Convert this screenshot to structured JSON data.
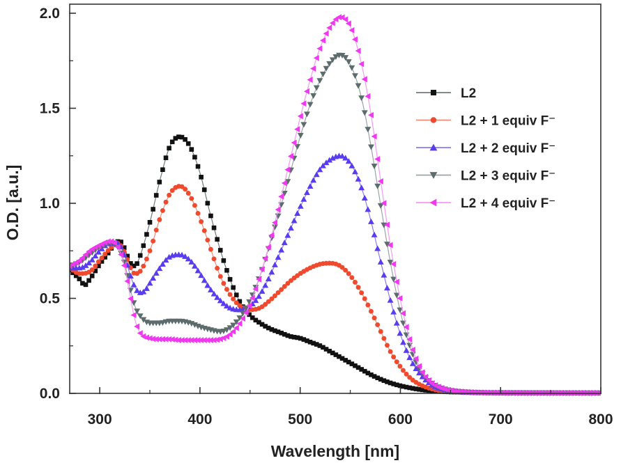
{
  "chart_data": {
    "type": "scatter",
    "title": "",
    "xlabel": "Wavelength [nm]",
    "ylabel": "O.D. [a.u.]",
    "xlim": [
      270,
      800
    ],
    "ylim": [
      0,
      2.0
    ],
    "x_ticks": [
      "300",
      "400",
      "500",
      "600",
      "700",
      "800"
    ],
    "y_ticks": [
      "0.0",
      "0.5",
      "1.0",
      "1.5",
      "2.0"
    ],
    "grid": false,
    "legend_position": "right",
    "series": [
      {
        "name": "L2",
        "marker": "square",
        "color": "#111111",
        "line_color": "#6d7b7c",
        "points": [
          [
            270,
            0.65
          ],
          [
            280,
            0.6
          ],
          [
            285,
            0.57
          ],
          [
            290,
            0.6
          ],
          [
            300,
            0.68
          ],
          [
            310,
            0.75
          ],
          [
            315,
            0.79
          ],
          [
            320,
            0.8
          ],
          [
            325,
            0.76
          ],
          [
            330,
            0.69
          ],
          [
            335,
            0.67
          ],
          [
            340,
            0.72
          ],
          [
            350,
            0.9
          ],
          [
            360,
            1.12
          ],
          [
            370,
            1.3
          ],
          [
            380,
            1.35
          ],
          [
            390,
            1.3
          ],
          [
            400,
            1.16
          ],
          [
            410,
            0.95
          ],
          [
            420,
            0.76
          ],
          [
            430,
            0.6
          ],
          [
            440,
            0.48
          ],
          [
            450,
            0.41
          ],
          [
            460,
            0.37
          ],
          [
            470,
            0.34
          ],
          [
            480,
            0.32
          ],
          [
            490,
            0.3
          ],
          [
            500,
            0.29
          ],
          [
            510,
            0.27
          ],
          [
            520,
            0.25
          ],
          [
            530,
            0.22
          ],
          [
            540,
            0.19
          ],
          [
            550,
            0.16
          ],
          [
            560,
            0.13
          ],
          [
            570,
            0.1
          ],
          [
            580,
            0.075
          ],
          [
            590,
            0.055
          ],
          [
            600,
            0.04
          ],
          [
            620,
            0.02
          ],
          [
            640,
            0.01
          ],
          [
            660,
            0.006
          ],
          [
            700,
            0.004
          ],
          [
            750,
            0.003
          ],
          [
            800,
            0.002
          ]
        ]
      },
      {
        "name": "L2 + 1 equiv F⁻",
        "marker": "circle",
        "color": "#f04a2e",
        "line_color": "#f08b7a",
        "points": [
          [
            270,
            0.66
          ],
          [
            280,
            0.63
          ],
          [
            290,
            0.64
          ],
          [
            300,
            0.7
          ],
          [
            310,
            0.76
          ],
          [
            318,
            0.79
          ],
          [
            325,
            0.74
          ],
          [
            330,
            0.67
          ],
          [
            335,
            0.63
          ],
          [
            340,
            0.64
          ],
          [
            350,
            0.75
          ],
          [
            360,
            0.92
          ],
          [
            370,
            1.05
          ],
          [
            380,
            1.09
          ],
          [
            390,
            1.04
          ],
          [
            400,
            0.92
          ],
          [
            410,
            0.77
          ],
          [
            420,
            0.62
          ],
          [
            430,
            0.52
          ],
          [
            440,
            0.46
          ],
          [
            450,
            0.44
          ],
          [
            460,
            0.45
          ],
          [
            470,
            0.49
          ],
          [
            480,
            0.54
          ],
          [
            490,
            0.59
          ],
          [
            500,
            0.63
          ],
          [
            510,
            0.66
          ],
          [
            520,
            0.68
          ],
          [
            530,
            0.685
          ],
          [
            540,
            0.67
          ],
          [
            550,
            0.62
          ],
          [
            560,
            0.54
          ],
          [
            570,
            0.44
          ],
          [
            580,
            0.33
          ],
          [
            590,
            0.22
          ],
          [
            600,
            0.14
          ],
          [
            610,
            0.08
          ],
          [
            620,
            0.045
          ],
          [
            630,
            0.025
          ],
          [
            640,
            0.014
          ],
          [
            660,
            0.006
          ],
          [
            700,
            0.003
          ],
          [
            750,
            0.002
          ],
          [
            800,
            0.002
          ]
        ]
      },
      {
        "name": "L2 + 2 equiv F⁻",
        "marker": "triangle-up",
        "color": "#5a3cf0",
        "line_color": "#8a7cf0",
        "points": [
          [
            270,
            0.66
          ],
          [
            280,
            0.66
          ],
          [
            290,
            0.69
          ],
          [
            300,
            0.75
          ],
          [
            310,
            0.79
          ],
          [
            318,
            0.79
          ],
          [
            325,
            0.72
          ],
          [
            330,
            0.63
          ],
          [
            335,
            0.56
          ],
          [
            340,
            0.53
          ],
          [
            345,
            0.54
          ],
          [
            350,
            0.58
          ],
          [
            360,
            0.66
          ],
          [
            370,
            0.72
          ],
          [
            380,
            0.73
          ],
          [
            390,
            0.7
          ],
          [
            400,
            0.63
          ],
          [
            410,
            0.55
          ],
          [
            420,
            0.49
          ],
          [
            430,
            0.45
          ],
          [
            440,
            0.44
          ],
          [
            450,
            0.46
          ],
          [
            460,
            0.52
          ],
          [
            470,
            0.62
          ],
          [
            480,
            0.74
          ],
          [
            490,
            0.86
          ],
          [
            500,
            0.98
          ],
          [
            510,
            1.09
          ],
          [
            520,
            1.18
          ],
          [
            530,
            1.23
          ],
          [
            540,
            1.25
          ],
          [
            550,
            1.21
          ],
          [
            560,
            1.1
          ],
          [
            570,
            0.92
          ],
          [
            580,
            0.7
          ],
          [
            590,
            0.49
          ],
          [
            600,
            0.31
          ],
          [
            610,
            0.18
          ],
          [
            620,
            0.1
          ],
          [
            630,
            0.05
          ],
          [
            640,
            0.025
          ],
          [
            660,
            0.008
          ],
          [
            700,
            0.003
          ],
          [
            750,
            0.002
          ],
          [
            800,
            0.002
          ]
        ]
      },
      {
        "name": "L2 + 3 equiv F⁻",
        "marker": "triangle-down",
        "color": "#5c6b6c",
        "line_color": "#9aa5a6",
        "points": [
          [
            270,
            0.67
          ],
          [
            280,
            0.69
          ],
          [
            290,
            0.73
          ],
          [
            300,
            0.77
          ],
          [
            310,
            0.79
          ],
          [
            318,
            0.77
          ],
          [
            325,
            0.68
          ],
          [
            330,
            0.56
          ],
          [
            335,
            0.46
          ],
          [
            340,
            0.41
          ],
          [
            350,
            0.37
          ],
          [
            360,
            0.37
          ],
          [
            370,
            0.38
          ],
          [
            380,
            0.38
          ],
          [
            390,
            0.37
          ],
          [
            400,
            0.35
          ],
          [
            410,
            0.335
          ],
          [
            420,
            0.325
          ],
          [
            430,
            0.345
          ],
          [
            440,
            0.4
          ],
          [
            450,
            0.49
          ],
          [
            460,
            0.62
          ],
          [
            470,
            0.79
          ],
          [
            480,
            0.97
          ],
          [
            490,
            1.16
          ],
          [
            500,
            1.35
          ],
          [
            510,
            1.52
          ],
          [
            520,
            1.65
          ],
          [
            530,
            1.74
          ],
          [
            540,
            1.78
          ],
          [
            550,
            1.73
          ],
          [
            560,
            1.58
          ],
          [
            570,
            1.32
          ],
          [
            580,
            1.0
          ],
          [
            590,
            0.69
          ],
          [
            600,
            0.43
          ],
          [
            610,
            0.24
          ],
          [
            620,
            0.12
          ],
          [
            630,
            0.06
          ],
          [
            640,
            0.03
          ],
          [
            660,
            0.009
          ],
          [
            700,
            0.003
          ],
          [
            750,
            0.002
          ],
          [
            800,
            0.002
          ]
        ]
      },
      {
        "name": "L2 + 4 equiv F⁻",
        "marker": "triangle-left",
        "color": "#ef38ef",
        "line_color": "#f39af3",
        "points": [
          [
            270,
            0.67
          ],
          [
            280,
            0.7
          ],
          [
            290,
            0.75
          ],
          [
            300,
            0.78
          ],
          [
            310,
            0.8
          ],
          [
            318,
            0.77
          ],
          [
            325,
            0.66
          ],
          [
            330,
            0.52
          ],
          [
            335,
            0.39
          ],
          [
            340,
            0.32
          ],
          [
            350,
            0.29
          ],
          [
            360,
            0.285
          ],
          [
            370,
            0.285
          ],
          [
            380,
            0.28
          ],
          [
            390,
            0.28
          ],
          [
            400,
            0.28
          ],
          [
            410,
            0.28
          ],
          [
            420,
            0.285
          ],
          [
            430,
            0.31
          ],
          [
            440,
            0.37
          ],
          [
            450,
            0.47
          ],
          [
            460,
            0.62
          ],
          [
            470,
            0.8
          ],
          [
            480,
            1.01
          ],
          [
            490,
            1.23
          ],
          [
            500,
            1.45
          ],
          [
            510,
            1.65
          ],
          [
            520,
            1.82
          ],
          [
            530,
            1.93
          ],
          [
            540,
            1.98
          ],
          [
            550,
            1.93
          ],
          [
            560,
            1.76
          ],
          [
            570,
            1.49
          ],
          [
            580,
            1.13
          ],
          [
            590,
            0.78
          ],
          [
            600,
            0.49
          ],
          [
            610,
            0.27
          ],
          [
            620,
            0.13
          ],
          [
            630,
            0.06
          ],
          [
            640,
            0.03
          ],
          [
            660,
            0.009
          ],
          [
            700,
            0.003
          ],
          [
            750,
            0.002
          ],
          [
            800,
            0.002
          ]
        ]
      }
    ]
  }
}
